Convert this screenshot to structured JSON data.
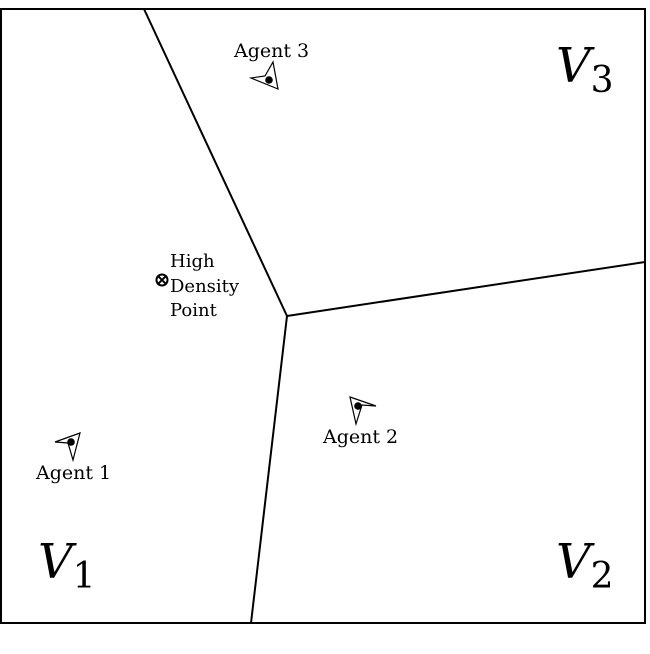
{
  "diagram": {
    "regions": [
      {
        "id": "v1",
        "letter": "V",
        "subscript": "1"
      },
      {
        "id": "v2",
        "letter": "V",
        "subscript": "2"
      },
      {
        "id": "v3",
        "letter": "V",
        "subscript": "3"
      }
    ],
    "agents": [
      {
        "id": "agent-1",
        "label": "Agent 1"
      },
      {
        "id": "agent-2",
        "label": "Agent 2"
      },
      {
        "id": "agent-3",
        "label": "Agent 3"
      }
    ],
    "high_density_point": {
      "label_lines": [
        "High",
        "Density",
        "Point"
      ]
    }
  }
}
